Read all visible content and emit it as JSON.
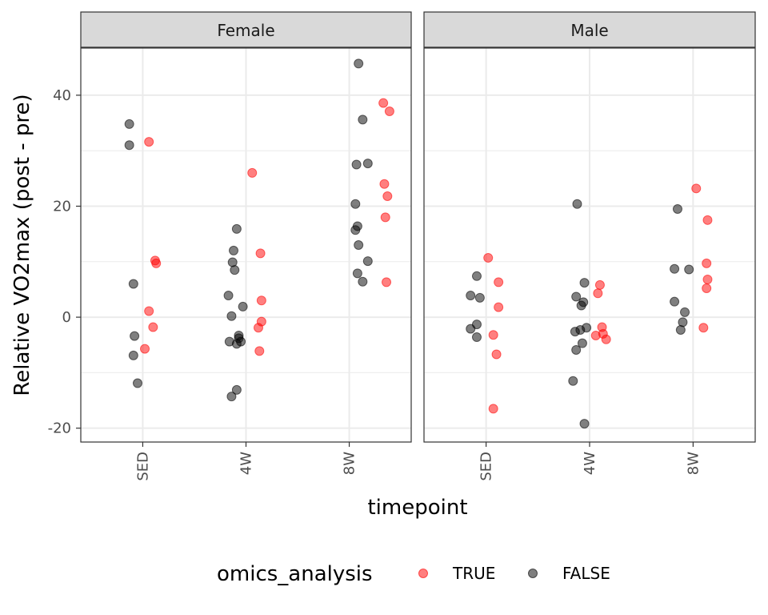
{
  "chart_data": {
    "type": "scatter",
    "xlabel": "timepoint",
    "ylabel": "Relative VO2max (post - pre)",
    "categories": [
      "SED",
      "4W",
      "8W"
    ],
    "y_ticks": [
      -20,
      0,
      20,
      40
    ],
    "y_tick_labels": [
      "-20",
      "0",
      "20",
      "40"
    ],
    "ylim": [
      -22.5,
      48.5
    ],
    "grid": true,
    "legend": {
      "title": "omics_analysis",
      "position": "bottom",
      "entries": [
        {
          "label": "TRUE",
          "color": "#ff0000"
        },
        {
          "label": "FALSE",
          "color": "#000000"
        }
      ]
    },
    "facets": [
      {
        "label": "Female",
        "points": [
          {
            "x": "SED",
            "y": 34.8,
            "j": -0.13,
            "omics": "FALSE"
          },
          {
            "x": "SED",
            "y": 31.0,
            "j": -0.13,
            "omics": "FALSE"
          },
          {
            "x": "SED",
            "y": 6.0,
            "j": -0.09,
            "omics": "FALSE"
          },
          {
            "x": "SED",
            "y": -3.4,
            "j": -0.08,
            "omics": "FALSE"
          },
          {
            "x": "SED",
            "y": -6.9,
            "j": -0.09,
            "omics": "FALSE"
          },
          {
            "x": "SED",
            "y": -11.9,
            "j": -0.05,
            "omics": "FALSE"
          },
          {
            "x": "SED",
            "y": 31.6,
            "j": 0.06,
            "omics": "TRUE"
          },
          {
            "x": "SED",
            "y": 10.2,
            "j": 0.12,
            "omics": "TRUE"
          },
          {
            "x": "SED",
            "y": 9.7,
            "j": 0.13,
            "omics": "TRUE"
          },
          {
            "x": "SED",
            "y": 1.1,
            "j": 0.06,
            "omics": "TRUE"
          },
          {
            "x": "SED",
            "y": -1.8,
            "j": 0.1,
            "omics": "TRUE"
          },
          {
            "x": "SED",
            "y": -5.7,
            "j": 0.02,
            "omics": "TRUE"
          },
          {
            "x": "4W",
            "y": 15.9,
            "j": -0.09,
            "omics": "FALSE"
          },
          {
            "x": "4W",
            "y": 12.0,
            "j": -0.12,
            "omics": "FALSE"
          },
          {
            "x": "4W",
            "y": 9.9,
            "j": -0.13,
            "omics": "FALSE"
          },
          {
            "x": "4W",
            "y": 8.5,
            "j": -0.11,
            "omics": "FALSE"
          },
          {
            "x": "4W",
            "y": 3.9,
            "j": -0.17,
            "omics": "FALSE"
          },
          {
            "x": "4W",
            "y": 1.9,
            "j": -0.03,
            "omics": "FALSE"
          },
          {
            "x": "4W",
            "y": 0.2,
            "j": -0.14,
            "omics": "FALSE"
          },
          {
            "x": "4W",
            "y": -3.3,
            "j": -0.07,
            "omics": "FALSE"
          },
          {
            "x": "4W",
            "y": -3.8,
            "j": -0.07,
            "omics": "FALSE"
          },
          {
            "x": "4W",
            "y": -4.4,
            "j": -0.16,
            "omics": "FALSE"
          },
          {
            "x": "4W",
            "y": -4.4,
            "j": -0.05,
            "omics": "FALSE"
          },
          {
            "x": "4W",
            "y": -4.8,
            "j": -0.09,
            "omics": "FALSE"
          },
          {
            "x": "4W",
            "y": -13.1,
            "j": -0.09,
            "omics": "FALSE"
          },
          {
            "x": "4W",
            "y": -14.3,
            "j": -0.14,
            "omics": "FALSE"
          },
          {
            "x": "4W",
            "y": 26.0,
            "j": 0.06,
            "omics": "TRUE"
          },
          {
            "x": "4W",
            "y": 11.5,
            "j": 0.14,
            "omics": "TRUE"
          },
          {
            "x": "4W",
            "y": 3.0,
            "j": 0.15,
            "omics": "TRUE"
          },
          {
            "x": "4W",
            "y": -0.8,
            "j": 0.15,
            "omics": "TRUE"
          },
          {
            "x": "4W",
            "y": -1.9,
            "j": 0.12,
            "omics": "TRUE"
          },
          {
            "x": "4W",
            "y": -6.1,
            "j": 0.13,
            "omics": "TRUE"
          },
          {
            "x": "8W",
            "y": 45.7,
            "j": 0.09,
            "omics": "FALSE"
          },
          {
            "x": "8W",
            "y": 35.6,
            "j": 0.13,
            "omics": "FALSE"
          },
          {
            "x": "8W",
            "y": 27.7,
            "j": 0.18,
            "omics": "FALSE"
          },
          {
            "x": "8W",
            "y": 27.5,
            "j": 0.07,
            "omics": "FALSE"
          },
          {
            "x": "8W",
            "y": 20.4,
            "j": 0.06,
            "omics": "FALSE"
          },
          {
            "x": "8W",
            "y": 16.4,
            "j": 0.08,
            "omics": "FALSE"
          },
          {
            "x": "8W",
            "y": 15.7,
            "j": 0.06,
            "omics": "FALSE"
          },
          {
            "x": "8W",
            "y": 13.0,
            "j": 0.09,
            "omics": "FALSE"
          },
          {
            "x": "8W",
            "y": 10.1,
            "j": 0.18,
            "omics": "FALSE"
          },
          {
            "x": "8W",
            "y": 7.9,
            "j": 0.08,
            "omics": "FALSE"
          },
          {
            "x": "8W",
            "y": 6.4,
            "j": 0.13,
            "omics": "FALSE"
          },
          {
            "x": "8W",
            "y": 38.6,
            "j": 0.33,
            "omics": "TRUE"
          },
          {
            "x": "8W",
            "y": 37.1,
            "j": 0.39,
            "omics": "TRUE"
          },
          {
            "x": "8W",
            "y": 24.0,
            "j": 0.34,
            "omics": "TRUE"
          },
          {
            "x": "8W",
            "y": 21.8,
            "j": 0.37,
            "omics": "TRUE"
          },
          {
            "x": "8W",
            "y": 18.0,
            "j": 0.35,
            "omics": "TRUE"
          },
          {
            "x": "8W",
            "y": 6.3,
            "j": 0.36,
            "omics": "TRUE"
          }
        ]
      },
      {
        "label": "Male",
        "points": [
          {
            "x": "SED",
            "y": 7.4,
            "j": -0.09,
            "omics": "FALSE"
          },
          {
            "x": "SED",
            "y": 3.9,
            "j": -0.15,
            "omics": "FALSE"
          },
          {
            "x": "SED",
            "y": 3.5,
            "j": -0.06,
            "omics": "FALSE"
          },
          {
            "x": "SED",
            "y": -1.3,
            "j": -0.09,
            "omics": "FALSE"
          },
          {
            "x": "SED",
            "y": -2.1,
            "j": -0.15,
            "omics": "FALSE"
          },
          {
            "x": "SED",
            "y": -3.6,
            "j": -0.09,
            "omics": "FALSE"
          },
          {
            "x": "SED",
            "y": 10.7,
            "j": 0.02,
            "omics": "TRUE"
          },
          {
            "x": "SED",
            "y": 6.3,
            "j": 0.12,
            "omics": "TRUE"
          },
          {
            "x": "SED",
            "y": 1.8,
            "j": 0.12,
            "omics": "TRUE"
          },
          {
            "x": "SED",
            "y": -3.2,
            "j": 0.07,
            "omics": "TRUE"
          },
          {
            "x": "SED",
            "y": -6.7,
            "j": 0.1,
            "omics": "TRUE"
          },
          {
            "x": "SED",
            "y": -16.5,
            "j": 0.07,
            "omics": "TRUE"
          },
          {
            "x": "4W",
            "y": 20.4,
            "j": -0.12,
            "omics": "FALSE"
          },
          {
            "x": "4W",
            "y": 6.2,
            "j": -0.05,
            "omics": "FALSE"
          },
          {
            "x": "4W",
            "y": 3.7,
            "j": -0.13,
            "omics": "FALSE"
          },
          {
            "x": "4W",
            "y": 2.7,
            "j": -0.06,
            "omics": "FALSE"
          },
          {
            "x": "4W",
            "y": 2.1,
            "j": -0.08,
            "omics": "FALSE"
          },
          {
            "x": "4W",
            "y": -1.9,
            "j": -0.03,
            "omics": "FALSE"
          },
          {
            "x": "4W",
            "y": -2.3,
            "j": -0.09,
            "omics": "FALSE"
          },
          {
            "x": "4W",
            "y": -2.6,
            "j": -0.14,
            "omics": "FALSE"
          },
          {
            "x": "4W",
            "y": -4.7,
            "j": -0.07,
            "omics": "FALSE"
          },
          {
            "x": "4W",
            "y": -5.9,
            "j": -0.13,
            "omics": "FALSE"
          },
          {
            "x": "4W",
            "y": -11.5,
            "j": -0.16,
            "omics": "FALSE"
          },
          {
            "x": "4W",
            "y": -19.2,
            "j": -0.05,
            "omics": "FALSE"
          },
          {
            "x": "4W",
            "y": 5.8,
            "j": 0.1,
            "omics": "TRUE"
          },
          {
            "x": "4W",
            "y": 4.3,
            "j": 0.08,
            "omics": "TRUE"
          },
          {
            "x": "4W",
            "y": -1.8,
            "j": 0.12,
            "omics": "TRUE"
          },
          {
            "x": "4W",
            "y": -3.0,
            "j": 0.13,
            "omics": "TRUE"
          },
          {
            "x": "4W",
            "y": -3.3,
            "j": 0.06,
            "omics": "TRUE"
          },
          {
            "x": "4W",
            "y": -4.0,
            "j": 0.16,
            "omics": "TRUE"
          },
          {
            "x": "8W",
            "y": 19.5,
            "j": -0.15,
            "omics": "FALSE"
          },
          {
            "x": "8W",
            "y": 8.7,
            "j": -0.18,
            "omics": "FALSE"
          },
          {
            "x": "8W",
            "y": 8.6,
            "j": -0.04,
            "omics": "FALSE"
          },
          {
            "x": "8W",
            "y": 2.8,
            "j": -0.18,
            "omics": "FALSE"
          },
          {
            "x": "8W",
            "y": 0.9,
            "j": -0.08,
            "omics": "FALSE"
          },
          {
            "x": "8W",
            "y": -0.9,
            "j": -0.1,
            "omics": "FALSE"
          },
          {
            "x": "8W",
            "y": -2.3,
            "j": -0.12,
            "omics": "FALSE"
          },
          {
            "x": "8W",
            "y": 23.2,
            "j": 0.03,
            "omics": "TRUE"
          },
          {
            "x": "8W",
            "y": 17.5,
            "j": 0.14,
            "omics": "TRUE"
          },
          {
            "x": "8W",
            "y": 9.7,
            "j": 0.13,
            "omics": "TRUE"
          },
          {
            "x": "8W",
            "y": 6.8,
            "j": 0.14,
            "omics": "TRUE"
          },
          {
            "x": "8W",
            "y": 5.2,
            "j": 0.13,
            "omics": "TRUE"
          },
          {
            "x": "8W",
            "y": -1.9,
            "j": 0.1,
            "omics": "TRUE"
          }
        ]
      }
    ]
  }
}
